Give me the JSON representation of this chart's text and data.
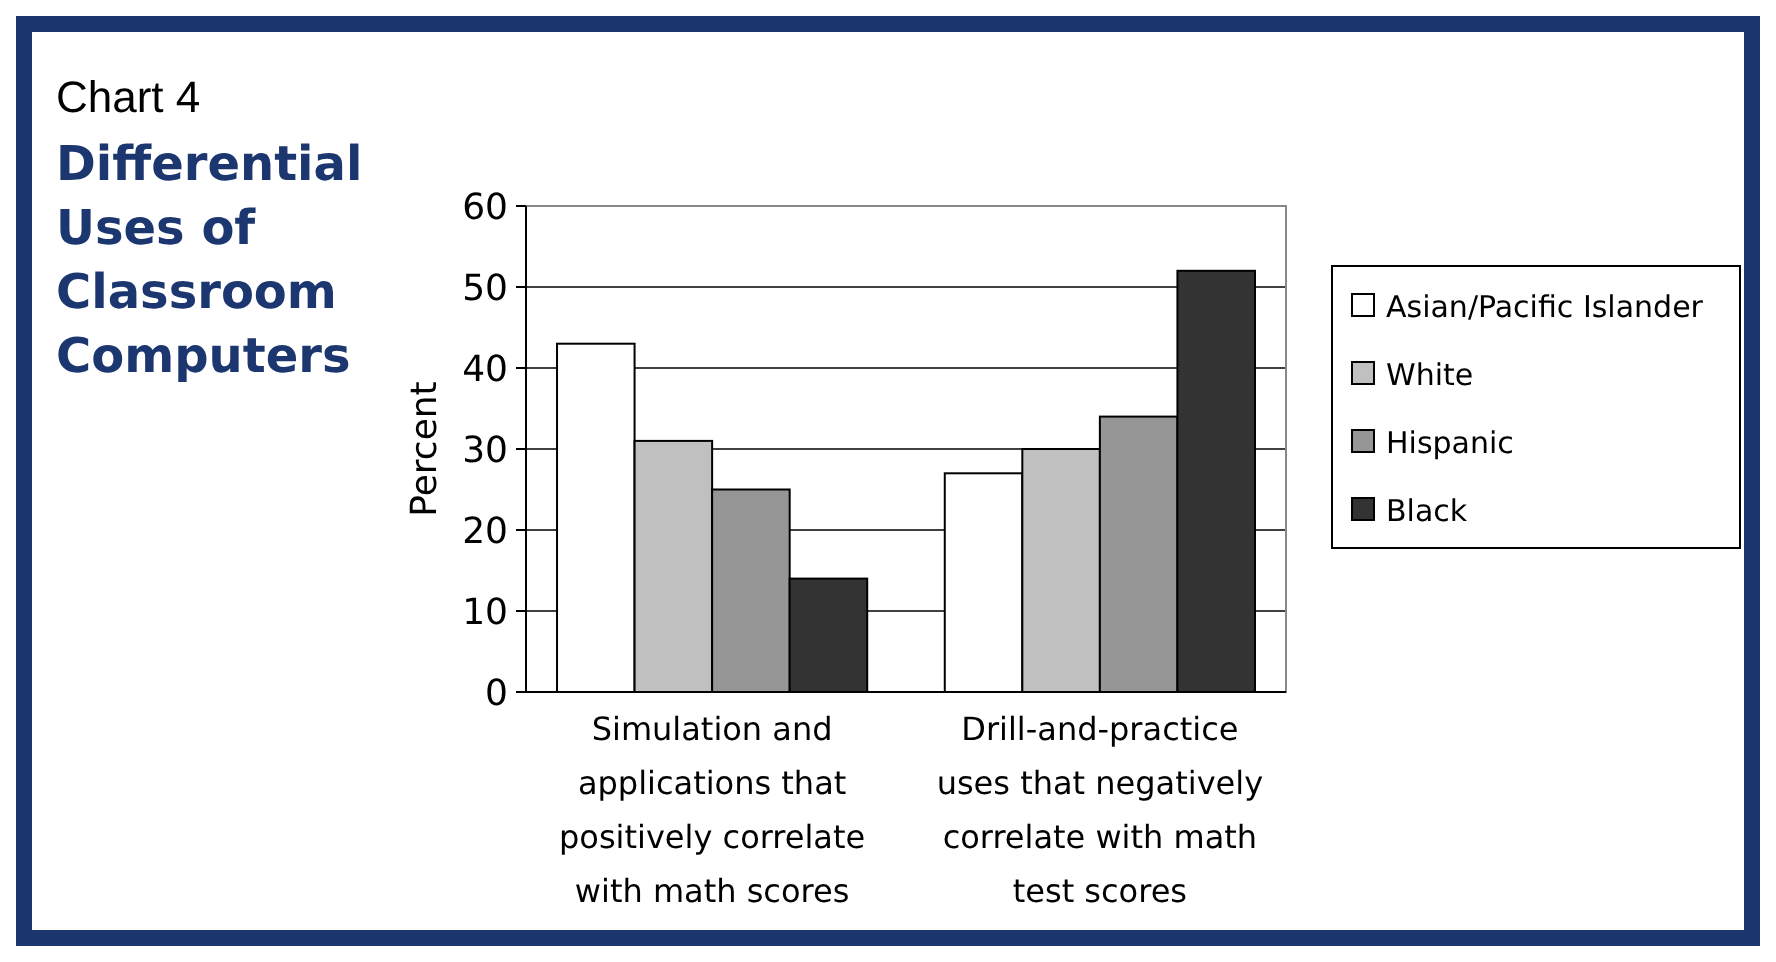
{
  "chart_data": {
    "type": "bar",
    "title": "Chart 4",
    "subtitle": "Differential Uses of Classroom Computers",
    "ylabel": "Percent",
    "categories": [
      "Simulation and applications that positively correlate with math scores",
      "Drill-and-practice uses that negatively correlate with math test scores"
    ],
    "series": [
      {
        "name": "Asian/Pacific Islander",
        "color": "#ffffff",
        "values": [
          43,
          27
        ]
      },
      {
        "name": "White",
        "color": "#c0c0c0",
        "values": [
          31,
          30
        ]
      },
      {
        "name": "Hispanic",
        "color": "#969696",
        "values": [
          25,
          34
        ]
      },
      {
        "name": "Black",
        "color": "#333333",
        "values": [
          14,
          52
        ]
      }
    ],
    "ylim": [
      0,
      60
    ],
    "yticks": [
      0,
      10,
      20,
      30,
      40,
      50,
      60
    ],
    "grid": "y",
    "legend": "right"
  }
}
